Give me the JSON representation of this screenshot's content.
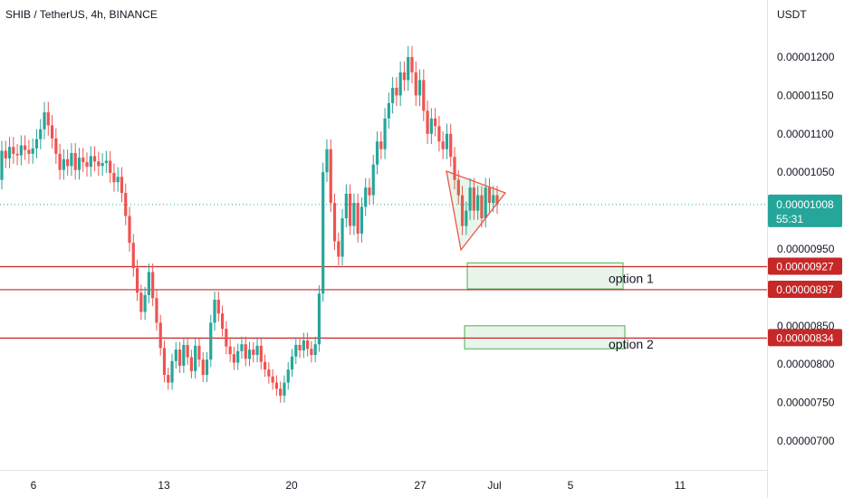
{
  "header": {
    "title": "SHIB / TetherUS, 4h, BINANCE",
    "currency": "USDT"
  },
  "colors": {
    "up": "#26a69a",
    "down": "#ef5350",
    "level": "#c62828",
    "price_line": "#26a69a",
    "zone": "#4caf50"
  },
  "chart_data": {
    "type": "candlestick",
    "title": "SHIB / TetherUS, 4h, BINANCE",
    "y_unit": "USDT",
    "ylim": [
      6.6e-06,
      1.29e-05
    ],
    "y_ticks": [
      "0.00001200",
      "0.00001150",
      "0.00001100",
      "0.00001050",
      "0.00000950",
      "0.00000850",
      "0.00000800",
      "0.00000750",
      "0.00000700"
    ],
    "x_tick_labels": [
      "6",
      "13",
      "20",
      "27",
      "Jul",
      "5",
      "11"
    ],
    "series": [
      {
        "points": [
          [
            1.04e-05,
            1.078e-05
          ],
          [
            1.078e-05,
            1.068e-05
          ],
          [
            1.068e-05,
            1.083e-05
          ],
          [
            1.083e-05,
            1.074e-05
          ],
          [
            1.074e-05,
            1.072e-05
          ],
          [
            1.072e-05,
            1.085e-05
          ],
          [
            1.085e-05,
            1.079e-05
          ],
          [
            1.079e-05,
            1.074e-05
          ],
          [
            1.074e-05,
            1.081e-05
          ],
          [
            1.081e-05,
            1.093e-05
          ],
          [
            1.093e-05,
            1.106e-05
          ],
          [
            1.106e-05,
            1.128e-05
          ],
          [
            1.128e-05,
            1.111e-05
          ],
          [
            1.111e-05,
            1.094e-05
          ],
          [
            1.094e-05,
            1.074e-05
          ],
          [
            1.074e-05,
            1.053e-05
          ],
          [
            1.053e-05,
            1.067e-05
          ],
          [
            1.067e-05,
            1.058e-05
          ],
          [
            1.058e-05,
            1.075e-05
          ],
          [
            1.075e-05,
            1.053e-05
          ],
          [
            1.053e-05,
            1.069e-05
          ],
          [
            1.069e-05,
            1.063e-05
          ],
          [
            1.063e-05,
            1.057e-05
          ],
          [
            1.057e-05,
            1.071e-05
          ],
          [
            1.071e-05,
            1.064e-05
          ],
          [
            1.064e-05,
            1.058e-05
          ],
          [
            1.058e-05,
            1.062e-05
          ],
          [
            1.062e-05,
            1.065e-05
          ],
          [
            1.065e-05,
            1.049e-05
          ],
          [
            1.049e-05,
            1.037e-05
          ],
          [
            1.037e-05,
            1.044e-05
          ],
          [
            1.044e-05,
            1.023e-05
          ],
          [
            1.023e-05,
            9.93e-06
          ],
          [
            9.93e-06,
            9.58e-06
          ],
          [
            9.58e-06,
            9.25e-06
          ],
          [
            9.25e-06,
            8.93e-06
          ],
          [
            8.93e-06,
            8.68e-06
          ],
          [
            8.68e-06,
            8.9e-06
          ],
          [
            8.9e-06,
            9.2e-06
          ],
          [
            9.2e-06,
            8.86e-06
          ],
          [
            8.86e-06,
            8.54e-06
          ],
          [
            8.54e-06,
            8.21e-06
          ],
          [
            8.21e-06,
            7.86e-06
          ],
          [
            7.86e-06,
            7.76e-06
          ],
          [
            7.76e-06,
            8.04e-06
          ],
          [
            8.04e-06,
            8.19e-06
          ],
          [
            8.19e-06,
            7.98e-06
          ],
          [
            7.98e-06,
            8.25e-06
          ],
          [
            8.25e-06,
            8.09e-06
          ],
          [
            8.09e-06,
            7.91e-06
          ],
          [
            7.91e-06,
            8.24e-06
          ],
          [
            8.24e-06,
            8.06e-06
          ],
          [
            8.06e-06,
            7.86e-06
          ],
          [
            7.86e-06,
            8.06e-06
          ],
          [
            8.06e-06,
            8.54e-06
          ],
          [
            8.54e-06,
            8.84e-06
          ],
          [
            8.84e-06,
            8.66e-06
          ],
          [
            8.66e-06,
            8.46e-06
          ],
          [
            8.46e-06,
            8.23e-06
          ],
          [
            8.23e-06,
            8.13e-06
          ],
          [
            8.13e-06,
            8.02e-06
          ],
          [
            8.02e-06,
            8.17e-06
          ],
          [
            8.17e-06,
            8.26e-06
          ],
          [
            8.26e-06,
            8.07e-06
          ],
          [
            8.07e-06,
            8.19e-06
          ],
          [
            8.19e-06,
            8.12e-06
          ],
          [
            8.12e-06,
            8.24e-06
          ],
          [
            8.24e-06,
            8.03e-06
          ],
          [
            8.03e-06,
            7.93e-06
          ],
          [
            7.93e-06,
            7.84e-06
          ],
          [
            7.84e-06,
            7.76e-06
          ],
          [
            7.76e-06,
            7.68e-06
          ],
          [
            7.68e-06,
            7.59e-06
          ],
          [
            7.59e-06,
            7.76e-06
          ],
          [
            7.76e-06,
            7.93e-06
          ],
          [
            7.93e-06,
            8.1e-06
          ],
          [
            8.1e-06,
            8.25e-06
          ],
          [
            8.25e-06,
            8.18e-06
          ],
          [
            8.18e-06,
            8.31e-06
          ],
          [
            8.31e-06,
            8.2e-06
          ],
          [
            8.2e-06,
            8.12e-06
          ],
          [
            8.12e-06,
            8.26e-06
          ],
          [
            8.26e-06,
            8.92e-06
          ],
          [
            8.92e-06,
            1.05e-05
          ],
          [
            1.05e-05,
            1.08e-05
          ],
          [
            1.08e-05,
            1.01e-05
          ],
          [
            1.01e-05,
            9.6e-06
          ],
          [
            9.6e-06,
            9.4e-06
          ],
          [
            9.4e-06,
            9.9e-06
          ],
          [
            9.9e-06,
            1.022e-05
          ],
          [
            1.022e-05,
            9.8e-06
          ],
          [
            9.8e-06,
            1.01e-05
          ],
          [
            1.01e-05,
            9.7e-06
          ],
          [
            9.7e-06,
            1.005e-05
          ],
          [
            1.005e-05,
            1.03e-05
          ],
          [
            1.03e-05,
            1.02e-05
          ],
          [
            1.02e-05,
            1.06e-05
          ],
          [
            1.06e-05,
            1.09e-05
          ],
          [
            1.09e-05,
            1.08e-05
          ],
          [
            1.08e-05,
            1.12e-05
          ],
          [
            1.12e-05,
            1.14e-05
          ],
          [
            1.14e-05,
            1.16e-05
          ],
          [
            1.16e-05,
            1.15e-05
          ],
          [
            1.15e-05,
            1.18e-05
          ],
          [
            1.18e-05,
            1.17e-05
          ],
          [
            1.17e-05,
            1.2e-05
          ],
          [
            1.2e-05,
            1.18e-05
          ],
          [
            1.18e-05,
            1.15e-05
          ],
          [
            1.15e-05,
            1.17e-05
          ],
          [
            1.17e-05,
            1.13e-05
          ],
          [
            1.13e-05,
            1.1e-05
          ],
          [
            1.1e-05,
            1.12e-05
          ],
          [
            1.12e-05,
            1.11e-05
          ],
          [
            1.11e-05,
            1.09e-05
          ],
          [
            1.09e-05,
            1.08e-05
          ],
          [
            1.08e-05,
            1.1e-05
          ],
          [
            1.1e-05,
            1.07e-05
          ],
          [
            1.07e-05,
            1.04e-05
          ],
          [
            1.04e-05,
            1.02e-05
          ],
          [
            1.02e-05,
            9.8e-06
          ],
          [
            9.8e-06,
            1e-05
          ],
          [
            1e-05,
            1.03e-05
          ],
          [
            1.03e-05,
            1e-05
          ],
          [
            1e-05,
            1.02e-05
          ],
          [
            1.02e-05,
            9.9e-06
          ],
          [
            9.9e-06,
            1.03e-05
          ],
          [
            1.03e-05,
            1.01e-05
          ],
          [
            1.01e-05,
            1.02e-05
          ],
          [
            1.02e-05,
            1.008e-05
          ]
        ]
      }
    ],
    "current_price": {
      "value": 1.008e-05,
      "label": "0.00001008",
      "countdown": "55:31"
    },
    "levels": [
      {
        "value": 9.27e-06,
        "label": "0.00000927"
      },
      {
        "value": 8.97e-06,
        "label": "0.00000897"
      },
      {
        "value": 8.34e-06,
        "label": "0.00000834"
      }
    ],
    "zones": [
      {
        "label": "option 1",
        "y_top": 9.32e-06,
        "y_bottom": 8.98e-06
      },
      {
        "label": "option 2",
        "y_top": 8.5e-06,
        "y_bottom": 8.2e-06
      }
    ],
    "triangle": [
      [
        1.04e-05
      ],
      [
        9.5e-06
      ],
      [
        1.02e-05
      ]
    ]
  }
}
